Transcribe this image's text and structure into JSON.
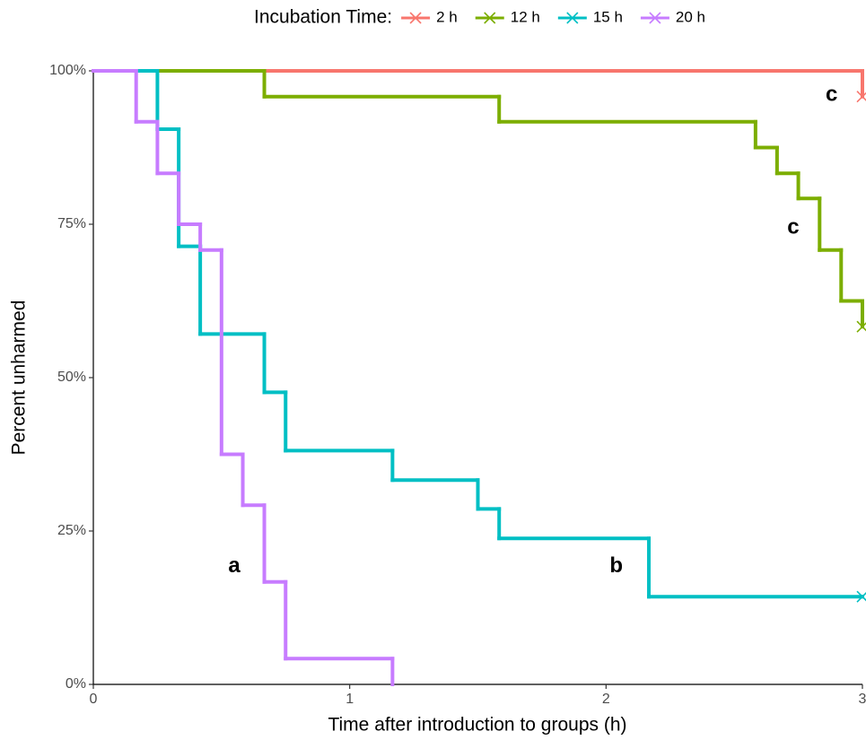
{
  "chart_data": {
    "type": "step",
    "x_label": "Time after introduction to groups (h)",
    "y_label": "Percent unharmed",
    "legend_title": "Incubation Time:",
    "legend_position": "top",
    "xlim": [
      0,
      3
    ],
    "ylim": [
      0,
      100
    ],
    "xticks": [
      0,
      1,
      2,
      3
    ],
    "yticks": [
      {
        "value": 0,
        "label": "0%"
      },
      {
        "value": 25,
        "label": "25%"
      },
      {
        "value": 50,
        "label": "50%"
      },
      {
        "value": 75,
        "label": "75%"
      },
      {
        "value": 100,
        "label": "100%"
      }
    ],
    "series": [
      {
        "name": "2 h",
        "color": "#F8766D",
        "censored": true,
        "x": [
          0,
          3
        ],
        "values": [
          100,
          95.8
        ]
      },
      {
        "name": "12 h",
        "color": "#7CAE00",
        "censored": true,
        "x": [
          0,
          0.667,
          1.583,
          2.583,
          2.667,
          2.75,
          2.833,
          2.917,
          3
        ],
        "values": [
          100,
          95.8,
          91.7,
          87.5,
          83.3,
          79.2,
          70.8,
          62.5,
          58.3
        ]
      },
      {
        "name": "15 h",
        "color": "#00BFC4",
        "censored": true,
        "x": [
          0,
          0.25,
          0.333,
          0.417,
          0.667,
          0.75,
          1.167,
          1.5,
          1.583,
          2.167,
          3
        ],
        "values": [
          100,
          90.5,
          71.4,
          57.1,
          47.6,
          38.1,
          33.3,
          28.6,
          23.8,
          14.3,
          14.3
        ]
      },
      {
        "name": "20 h",
        "color": "#C77CFF",
        "censored": false,
        "x": [
          0,
          0.167,
          0.25,
          0.333,
          0.417,
          0.5,
          0.583,
          0.667,
          0.75,
          1.167
        ],
        "values": [
          100,
          91.7,
          83.3,
          75,
          70.8,
          37.5,
          29.2,
          16.7,
          4.2,
          0
        ]
      }
    ],
    "annotations": [
      {
        "text": "c",
        "x": 2.88,
        "y": 96
      },
      {
        "text": "c",
        "x": 2.73,
        "y": 74.4
      },
      {
        "text": "b",
        "x": 2.04,
        "y": 19.2
      },
      {
        "text": "a",
        "x": 0.55,
        "y": 19.2
      }
    ]
  }
}
